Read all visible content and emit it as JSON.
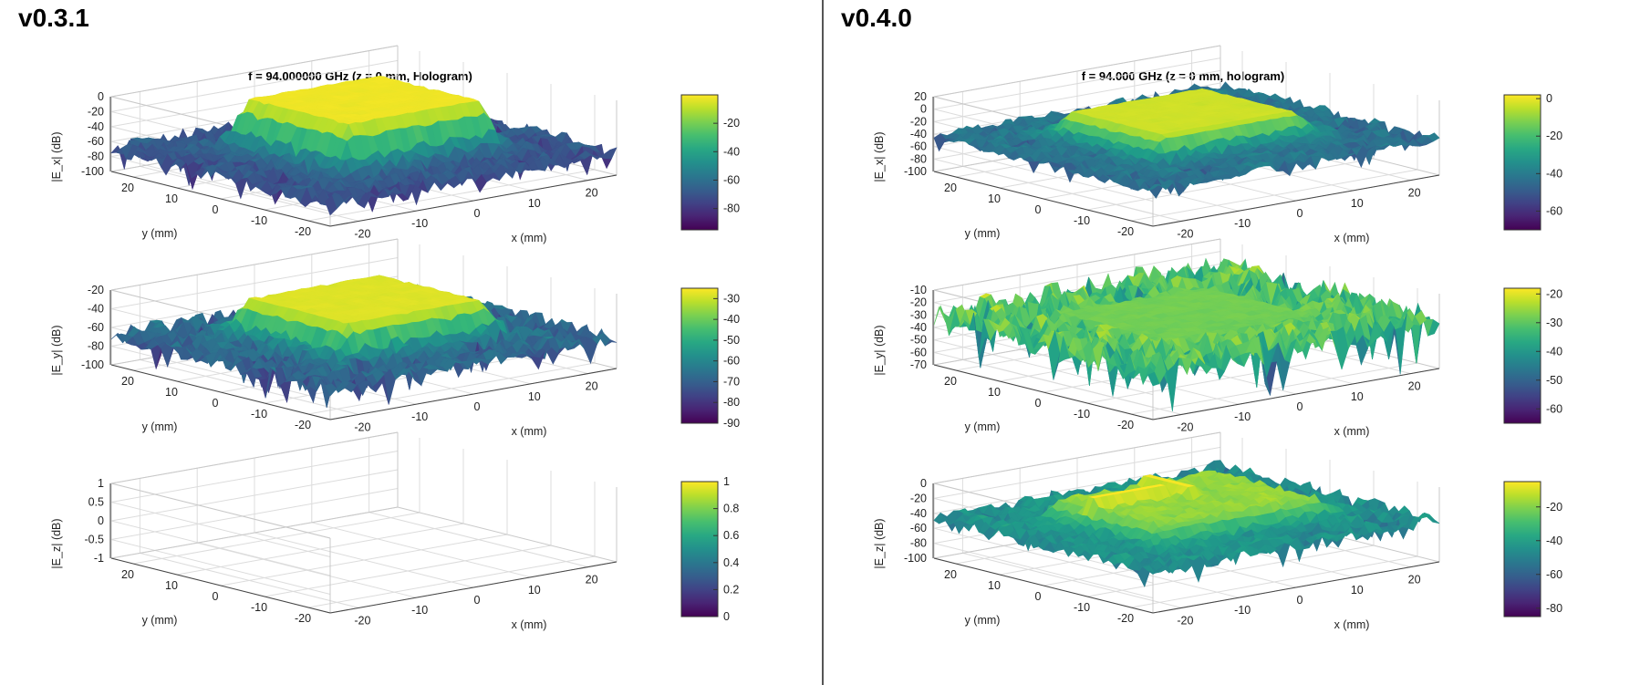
{
  "panels": [
    {
      "version": "v0.3.1",
      "title": "f = 94.000000 GHz (z = 0 mm, Hologram)"
    },
    {
      "version": "v0.4.0",
      "title": "f = 94.000 GHz (z = 0 mm, hologram)"
    }
  ],
  "chart_data": [
    {
      "type": "surface",
      "panel": "v0.3.1",
      "component": "Ex",
      "zlabel": "|E_x| (dB)",
      "xlabel": "x (mm)",
      "ylabel": "y (mm)",
      "x_ticks": [
        -20,
        -10,
        0,
        10,
        20
      ],
      "y_ticks": [
        20,
        10,
        0,
        -10,
        -20
      ],
      "z_ticks": [
        0,
        -20,
        -40,
        -60,
        -80,
        -100
      ],
      "zlim": [
        -100,
        0
      ],
      "colorbar_ticks": [
        -20,
        -40,
        -60,
        -80
      ],
      "clim": [
        -95,
        0
      ],
      "surface": {
        "plateau": -2,
        "plateau_x": [
          -12,
          12
        ],
        "plateau_y": [
          -12,
          12
        ],
        "floor": -70,
        "noise": 10,
        "seed": 11
      }
    },
    {
      "type": "surface",
      "panel": "v0.3.1",
      "component": "Ey",
      "zlabel": "|E_y| (dB)",
      "xlabel": "x (mm)",
      "ylabel": "y (mm)",
      "x_ticks": [
        -20,
        -10,
        0,
        10,
        20
      ],
      "y_ticks": [
        20,
        10,
        0,
        -10,
        -20
      ],
      "z_ticks": [
        -20,
        -40,
        -60,
        -80,
        -100
      ],
      "zlim": [
        -100,
        -20
      ],
      "colorbar_ticks": [
        -30,
        -40,
        -50,
        -60,
        -70,
        -80,
        -90
      ],
      "clim": [
        -90,
        -25
      ],
      "surface": {
        "plateau": -28,
        "plateau_x": [
          -12,
          12
        ],
        "plateau_y": [
          -12,
          12
        ],
        "floor": -68,
        "noise": 9,
        "seed": 23
      }
    },
    {
      "type": "surface",
      "panel": "v0.3.1",
      "component": "Ez",
      "zlabel": "|E_z| (dB)",
      "xlabel": "x (mm)",
      "ylabel": "y (mm)",
      "x_ticks": [
        -20,
        -10,
        0,
        10,
        20
      ],
      "y_ticks": [
        20,
        10,
        0,
        -10,
        -20
      ],
      "z_ticks": [
        1,
        0.5,
        0,
        -0.5,
        -1
      ],
      "zlim": [
        -1,
        1
      ],
      "colorbar_ticks": [
        1,
        0.8,
        0.6,
        0.4,
        0.2,
        0
      ],
      "clim": [
        0,
        1
      ],
      "surface": null
    },
    {
      "type": "surface",
      "panel": "v0.4.0",
      "component": "Ex",
      "zlabel": "|E_x| (dB)",
      "xlabel": "x (mm)",
      "ylabel": "y (mm)",
      "x_ticks": [
        -20,
        -10,
        0,
        10,
        20
      ],
      "y_ticks": [
        20,
        10,
        0,
        -10,
        -20
      ],
      "z_ticks": [
        20,
        0,
        -20,
        -40,
        -60,
        -80,
        -100
      ],
      "zlim": [
        -100,
        20
      ],
      "colorbar_ticks": [
        0,
        -20,
        -40,
        -60
      ],
      "clim": [
        -70,
        2
      ],
      "surface": {
        "plateau": -3,
        "plateau_x": [
          -12,
          12
        ],
        "plateau_y": [
          -10,
          12
        ],
        "floor": -42,
        "noise": 8,
        "seed": 37
      }
    },
    {
      "type": "surface",
      "panel": "v0.4.0",
      "component": "Ey",
      "zlabel": "|E_y| (dB)",
      "xlabel": "x (mm)",
      "ylabel": "y (mm)",
      "x_ticks": [
        -20,
        -10,
        0,
        10,
        20
      ],
      "y_ticks": [
        20,
        10,
        0,
        -10,
        -20
      ],
      "z_ticks": [
        -10,
        -20,
        -30,
        -40,
        -50,
        -60,
        -70
      ],
      "zlim": [
        -70,
        -10
      ],
      "colorbar_ticks": [
        -20,
        -30,
        -40,
        -50,
        -60
      ],
      "clim": [
        -65,
        -18
      ],
      "surface": {
        "plateau": -28,
        "plateau_x": [
          -13,
          13
        ],
        "plateau_y": [
          -13,
          13
        ],
        "floor": -32,
        "noise": 12,
        "seed": 41
      }
    },
    {
      "type": "surface",
      "panel": "v0.4.0",
      "component": "Ez",
      "zlabel": "|E_z| (dB)",
      "xlabel": "x (mm)",
      "ylabel": "y (mm)",
      "x_ticks": [
        -20,
        -10,
        0,
        10,
        20
      ],
      "y_ticks": [
        20,
        10,
        0,
        -10,
        -20
      ],
      "z_ticks": [
        0,
        -20,
        -40,
        -60,
        -80,
        -100
      ],
      "zlim": [
        -100,
        0
      ],
      "colorbar_ticks": [
        -20,
        -40,
        -60,
        -80
      ],
      "clim": [
        -85,
        -5
      ],
      "surface": {
        "plateau": -18,
        "plateau_x": [
          -14,
          14
        ],
        "plateau_y": [
          -12,
          12
        ],
        "floor": -45,
        "noise": 9,
        "seed": 53,
        "ridges": true
      }
    }
  ]
}
